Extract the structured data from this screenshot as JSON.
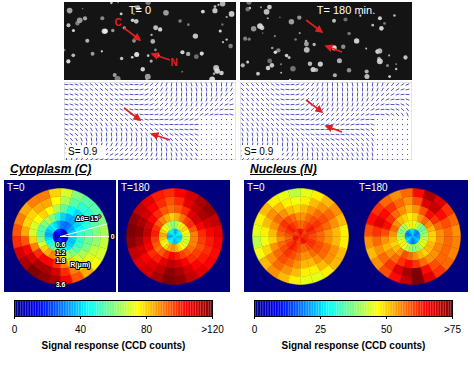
{
  "figure": {
    "images": [
      {
        "label": "T= 0",
        "arrow_labels": [
          "C",
          "N"
        ]
      },
      {
        "label": "T= 180 min.",
        "arrows": 2
      }
    ],
    "fields": [
      {
        "label": "S= 0.9",
        "arrows": 2
      },
      {
        "label": "S= 0.9",
        "arrows": 2
      }
    ],
    "groups": [
      {
        "title": "Cytoplasm (C)",
        "colorbar": {
          "label": "Signal response (CCD counts)",
          "clim": [
            0,
            120
          ],
          "cticks": [
            0,
            40,
            80,
            {
              "value": 120,
              "label": ">120"
            }
          ]
        }
      },
      {
        "title": "Nucleus (N)",
        "colorbar": {
          "label": "Signal response (CCD counts)",
          "clim": [
            0,
            75
          ],
          "cticks": [
            0,
            25,
            50,
            {
              "value": 75,
              "label": ">75"
            }
          ]
        }
      }
    ]
  },
  "chart_data": [
    {
      "type": "polar_heatmap",
      "group": "Cytoplasm (C)",
      "title": "T=0",
      "r_edges": [
        0,
        0.6,
        1.2,
        1.8,
        2.4,
        3.0,
        3.6
      ],
      "theta_step": 15,
      "annotations": {
        "r_label": "R(μm)",
        "r_ticks": [
          0.6,
          1.2,
          1.8,
          3.6
        ],
        "theta_label": "Δθ= 15°",
        "theta_ticks": [
          0
        ]
      },
      "values": [
        [
          15,
          12,
          10,
          10,
          12,
          15,
          18,
          20,
          18,
          15,
          12,
          10,
          10,
          12,
          15,
          18,
          20,
          22,
          20,
          18,
          15,
          12,
          12,
          14
        ],
        [
          40,
          38,
          35,
          30,
          28,
          30,
          35,
          40,
          45,
          42,
          38,
          35,
          40,
          45,
          50,
          55,
          60,
          55,
          50,
          45,
          42,
          40,
          38,
          40
        ],
        [
          50,
          45,
          40,
          35,
          35,
          40,
          50,
          60,
          65,
          60,
          55,
          55,
          60,
          70,
          80,
          85,
          90,
          85,
          75,
          65,
          60,
          55,
          52,
          50
        ],
        [
          55,
          50,
          45,
          40,
          45,
          55,
          65,
          75,
          80,
          75,
          70,
          70,
          80,
          90,
          100,
          105,
          105,
          100,
          90,
          80,
          70,
          65,
          60,
          58
        ],
        [
          60,
          55,
          50,
          50,
          55,
          65,
          75,
          85,
          85,
          80,
          80,
          85,
          95,
          105,
          110,
          115,
          115,
          110,
          100,
          90,
          80,
          72,
          68,
          62
        ],
        [
          65,
          60,
          55,
          55,
          60,
          70,
          80,
          90,
          90,
          85,
          90,
          95,
          100,
          110,
          115,
          120,
          118,
          115,
          105,
          95,
          85,
          75,
          70,
          68
        ]
      ]
    },
    {
      "type": "polar_heatmap",
      "group": "Cytoplasm (C)",
      "title": "T=180",
      "r_edges": [
        0,
        0.6,
        1.2,
        1.8,
        2.4,
        3.0,
        3.6
      ],
      "theta_step": 15,
      "values": [
        [
          40,
          45,
          50,
          45,
          40,
          35,
          40,
          45,
          50,
          45,
          40,
          38,
          35,
          40,
          45,
          50,
          45,
          40,
          38,
          40,
          42,
          45,
          42,
          40
        ],
        [
          70,
          75,
          80,
          78,
          72,
          65,
          60,
          65,
          70,
          75,
          80,
          85,
          82,
          78,
          75,
          80,
          85,
          88,
          85,
          80,
          75,
          72,
          70,
          70
        ],
        [
          90,
          95,
          100,
          98,
          92,
          85,
          80,
          85,
          90,
          95,
          100,
          102,
          98,
          95,
          92,
          95,
          100,
          105,
          102,
          98,
          95,
          92,
          90,
          90
        ],
        [
          100,
          105,
          110,
          108,
          100,
          95,
          92,
          95,
          100,
          105,
          110,
          112,
          108,
          105,
          100,
          102,
          108,
          112,
          110,
          105,
          100,
          98,
          96,
          98
        ],
        [
          105,
          110,
          115,
          112,
          108,
          100,
          95,
          100,
          105,
          110,
          115,
          118,
          115,
          110,
          105,
          108,
          112,
          118,
          115,
          110,
          105,
          102,
          100,
          102
        ],
        [
          108,
          112,
          118,
          115,
          110,
          105,
          100,
          102,
          108,
          112,
          118,
          120,
          118,
          112,
          108,
          110,
          115,
          120,
          118,
          112,
          108,
          105,
          104,
          106
        ]
      ]
    },
    {
      "type": "polar_heatmap",
      "group": "Nucleus (N)",
      "title": "T=0",
      "r_edges": [
        0,
        0.6,
        1.2,
        1.8,
        2.4,
        3.0,
        3.6
      ],
      "theta_step": 15,
      "values": [
        [
          62,
          62,
          60,
          60,
          62,
          64,
          65,
          64,
          62,
          60,
          60,
          62,
          64,
          65,
          64,
          62,
          60,
          60,
          62,
          64,
          65,
          64,
          62,
          62
        ],
        [
          60,
          62,
          64,
          62,
          60,
          58,
          58,
          60,
          62,
          64,
          62,
          60,
          58,
          60,
          62,
          64,
          62,
          60,
          58,
          58,
          60,
          62,
          62,
          60
        ],
        [
          58,
          60,
          62,
          60,
          58,
          55,
          55,
          58,
          60,
          62,
          60,
          58,
          55,
          58,
          60,
          62,
          60,
          58,
          55,
          55,
          58,
          60,
          60,
          58
        ],
        [
          55,
          58,
          60,
          58,
          55,
          52,
          50,
          52,
          55,
          58,
          55,
          52,
          50,
          55,
          58,
          60,
          58,
          55,
          52,
          52,
          55,
          58,
          58,
          55
        ],
        [
          52,
          55,
          58,
          55,
          52,
          48,
          46,
          48,
          52,
          55,
          52,
          48,
          46,
          50,
          55,
          58,
          55,
          52,
          48,
          48,
          52,
          55,
          55,
          52
        ],
        [
          48,
          52,
          55,
          52,
          48,
          45,
          42,
          45,
          48,
          52,
          48,
          45,
          42,
          46,
          52,
          55,
          52,
          48,
          45,
          45,
          48,
          52,
          52,
          48
        ]
      ]
    },
    {
      "type": "polar_heatmap",
      "group": "Nucleus (N)",
      "title": "T=180",
      "r_edges": [
        0,
        0.6,
        1.2,
        1.8,
        2.4,
        3.0,
        3.6
      ],
      "theta_step": 15,
      "values": [
        [
          22,
          20,
          18,
          20,
          22,
          25,
          28,
          25,
          22,
          20,
          18,
          20,
          22,
          25,
          28,
          25,
          22,
          20,
          18,
          20,
          22,
          25,
          25,
          22
        ],
        [
          40,
          38,
          35,
          38,
          42,
          45,
          48,
          45,
          42,
          40,
          38,
          40,
          42,
          45,
          48,
          45,
          42,
          40,
          38,
          40,
          42,
          45,
          44,
          42
        ],
        [
          50,
          52,
          55,
          58,
          55,
          50,
          48,
          50,
          52,
          55,
          58,
          55,
          52,
          50,
          52,
          55,
          60,
          58,
          55,
          52,
          50,
          52,
          52,
          50
        ],
        [
          55,
          58,
          62,
          65,
          60,
          55,
          52,
          55,
          58,
          62,
          65,
          60,
          55,
          52,
          55,
          58,
          62,
          65,
          62,
          58,
          55,
          55,
          56,
          55
        ],
        [
          58,
          60,
          65,
          70,
          68,
          60,
          55,
          58,
          62,
          65,
          68,
          62,
          58,
          55,
          58,
          62,
          68,
          72,
          75,
          65,
          60,
          58,
          58,
          58
        ],
        [
          55,
          58,
          62,
          68,
          72,
          65,
          58,
          55,
          58,
          62,
          65,
          60,
          55,
          52,
          55,
          60,
          65,
          70,
          75,
          68,
          62,
          58,
          56,
          56
        ]
      ]
    }
  ]
}
